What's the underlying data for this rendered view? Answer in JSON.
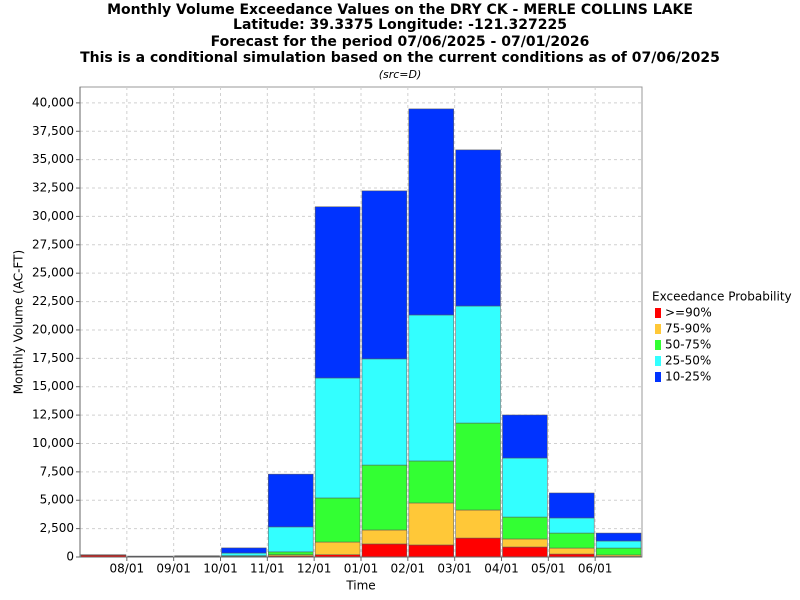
{
  "chart_data": {
    "type": "stacked_bar",
    "title": "Monthly Volume Exceedance Values on the DRY CK - MERLE COLLINS LAKE",
    "title_lines": [
      "Latitude: 39.3375 Longitude: -121.327225",
      "Forecast for the period 07/06/2025 - 07/01/2026",
      "This is a conditional simulation based on the current conditions as of 07/06/2025"
    ],
    "subtitle": "(src=D)",
    "y_label": "Monthly Volume (AC-FT)",
    "x_label": "Time",
    "xtick_labels": [
      "08/01",
      "09/01",
      "10/01",
      "11/01",
      "12/01",
      "01/01",
      "02/01",
      "03/01",
      "04/01",
      "05/01",
      "06/01"
    ],
    "legend_title": "Exceedance Probability",
    "series": [
      {
        "name": ">=90%",
        "color": "#ff0000",
        "values": [
          150,
          20,
          20,
          30,
          100,
          200,
          1150,
          1060,
          1670,
          880,
          260,
          50
        ]
      },
      {
        "name": "75-90%",
        "color": "#ffc838",
        "values": [
          20,
          10,
          10,
          30,
          100,
          1120,
          1230,
          3700,
          2470,
          710,
          530,
          130
        ]
      },
      {
        "name": "50-75%",
        "color": "#33ff33",
        "values": [
          10,
          20,
          20,
          60,
          250,
          3880,
          5720,
          3700,
          7660,
          1930,
          1320,
          610
        ]
      },
      {
        "name": "25-50%",
        "color": "#33ffff",
        "values": [
          10,
          20,
          40,
          230,
          2200,
          10570,
          9350,
          12860,
          10310,
          5200,
          1330,
          620
        ]
      },
      {
        "name": "10-25%",
        "color": "#0033ff",
        "values": [
          10,
          10,
          20,
          450,
          4650,
          15080,
          14800,
          18150,
          13750,
          3790,
          2200,
          700
        ]
      }
    ],
    "ylim": [
      0,
      41400
    ],
    "yticks": [
      0,
      {
        "value": 2500,
        "label": "2,500"
      },
      {
        "value": 5000,
        "label": "5,000"
      },
      {
        "value": 7500,
        "label": "7,500"
      },
      {
        "value": 10000,
        "label": "10,000"
      },
      {
        "value": 12500,
        "label": "12,500"
      },
      {
        "value": 15000,
        "label": "15,000"
      },
      {
        "value": 17500,
        "label": "17,500"
      },
      {
        "value": 20000,
        "label": "20,000"
      },
      {
        "value": 22500,
        "label": "22,500"
      },
      {
        "value": 25000,
        "label": "25,000"
      },
      {
        "value": 27500,
        "label": "27,500"
      },
      {
        "value": 30000,
        "label": "30,000"
      },
      {
        "value": 32500,
        "label": "32,500"
      },
      {
        "value": 35000,
        "label": "35,000"
      },
      {
        "value": 37500,
        "label": "37,500"
      },
      {
        "value": 40000,
        "label": "40,000"
      }
    ],
    "grid": true
  }
}
